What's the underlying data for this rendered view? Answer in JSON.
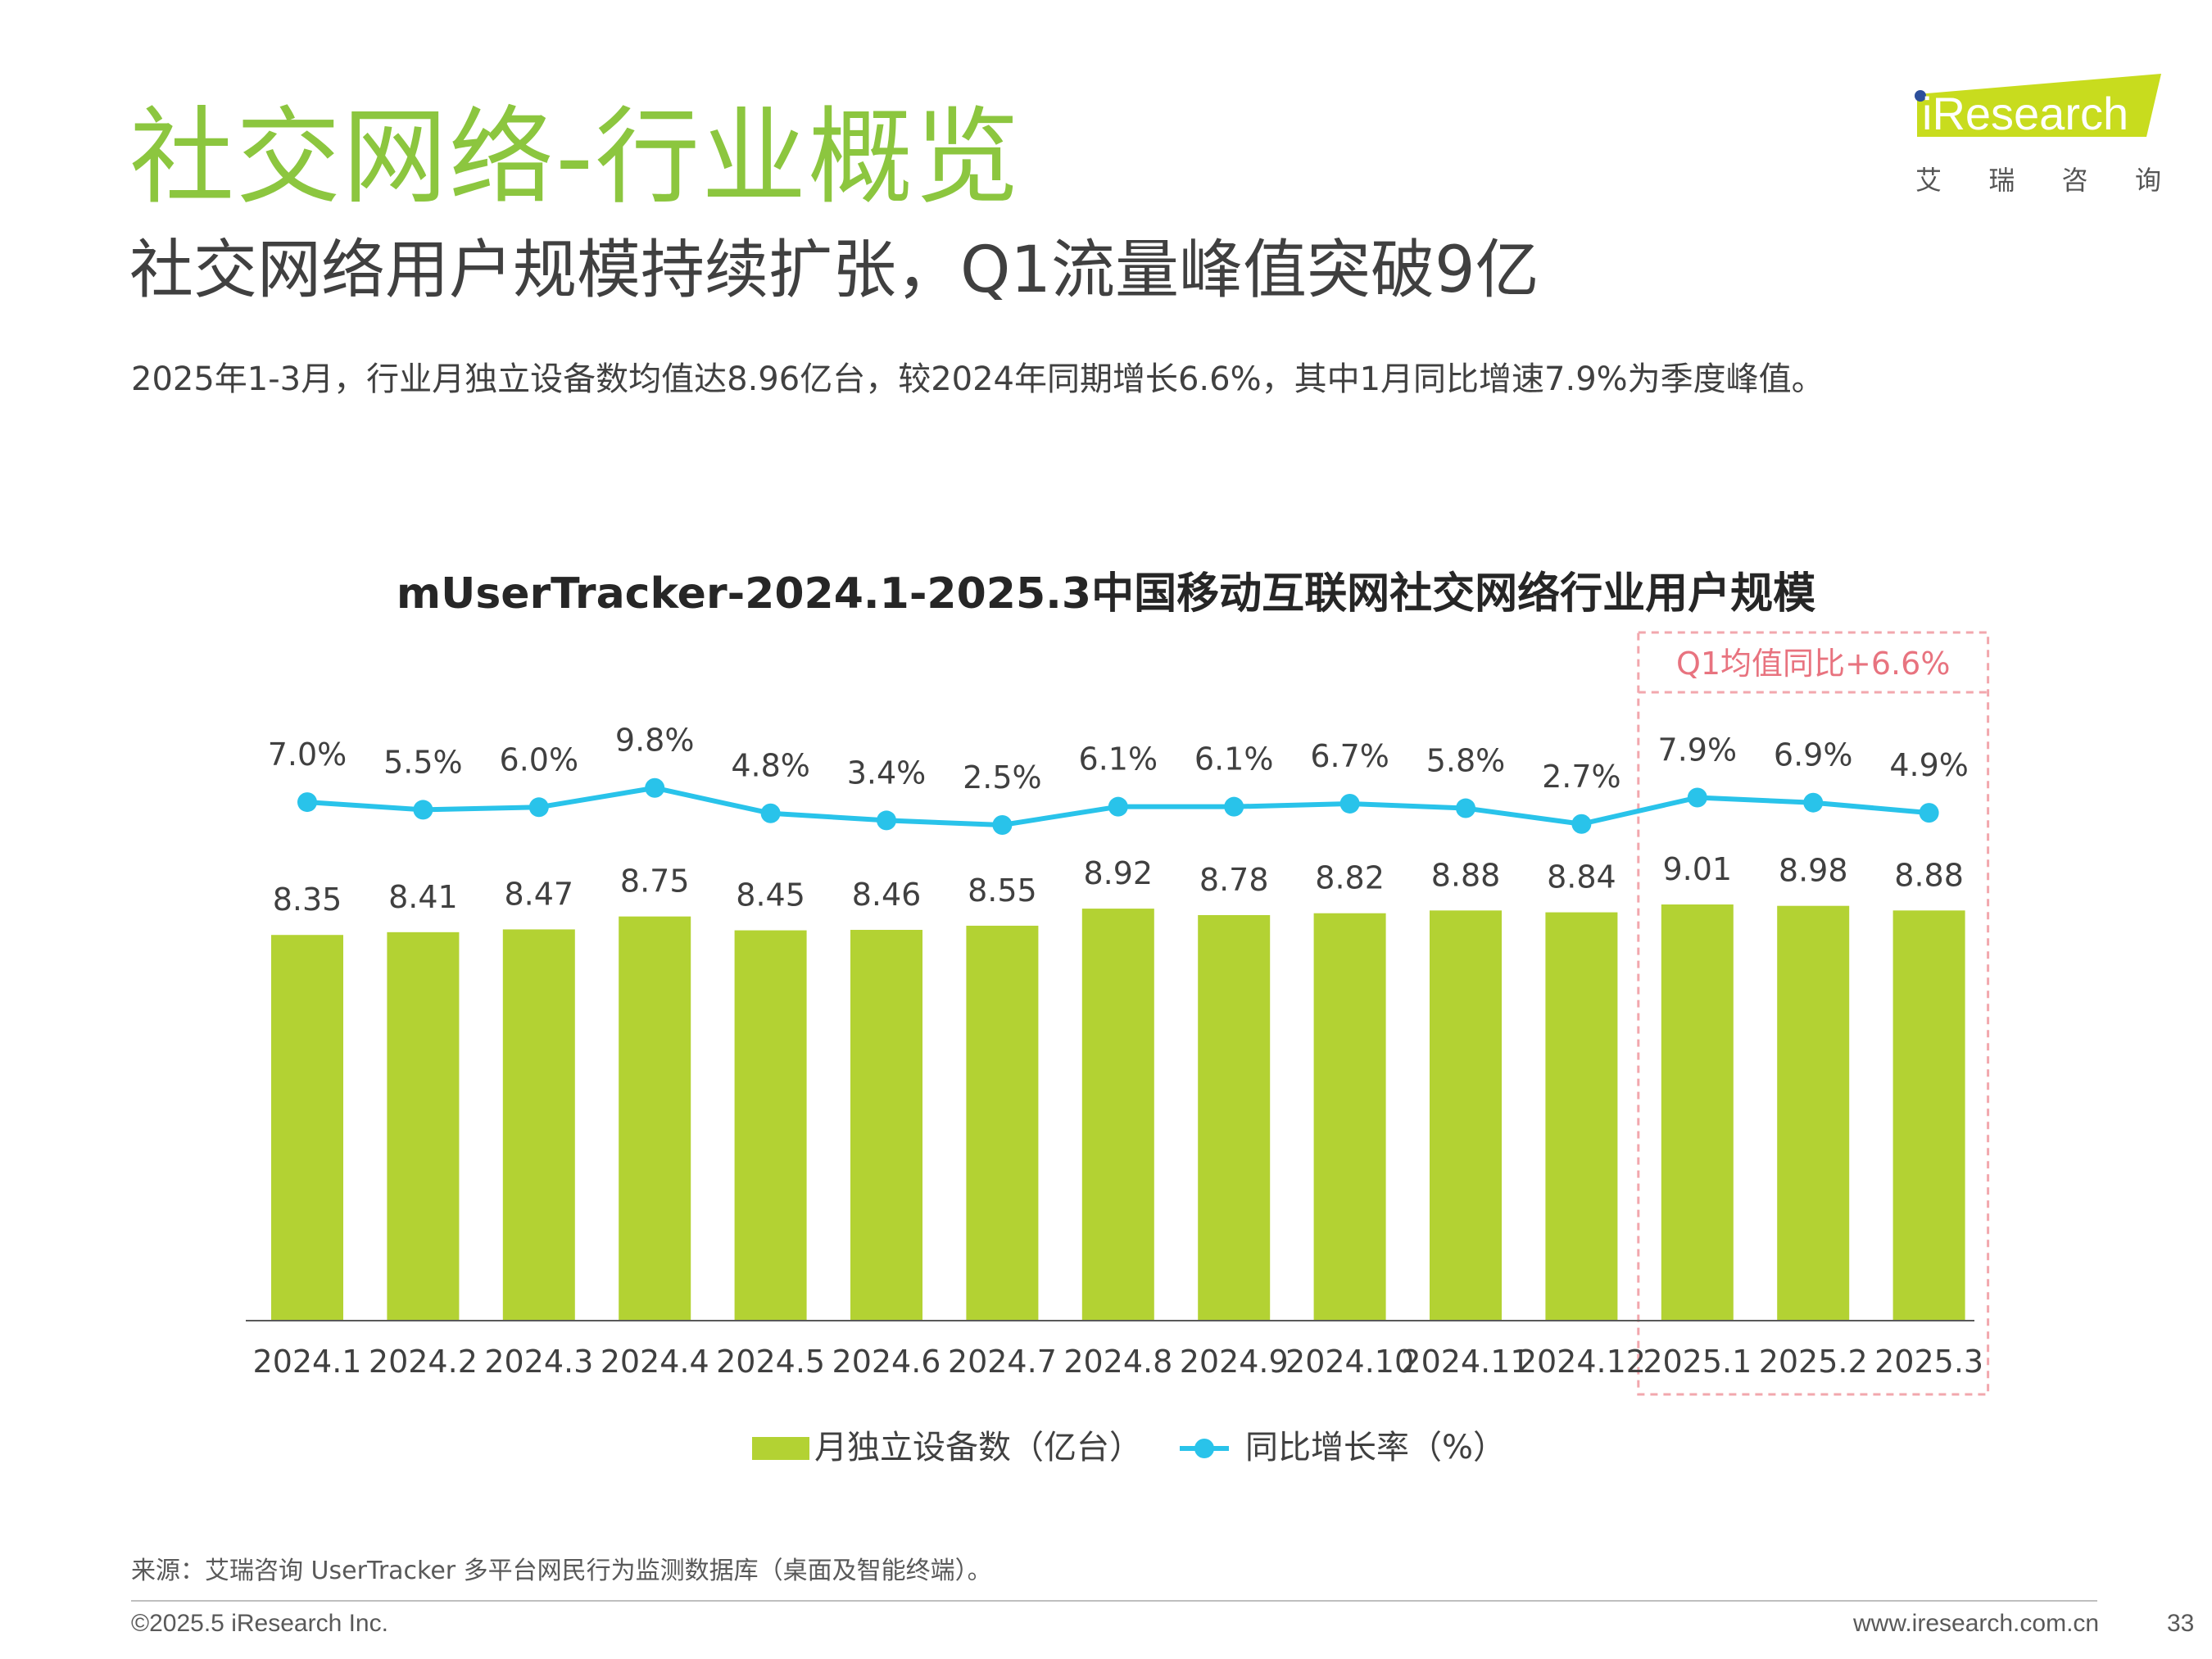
{
  "page": {
    "title": "社交网络-行业概览",
    "subtitle": "社交网络用户规模持续扩张，Q1流量峰值突破9亿",
    "summary": "2025年1-3月，行业月独立设备数均值达8.96亿台，较2024年同期增长6.6%，其中1月同比增速7.9%为季度峰值。",
    "logo_text": "iResearch",
    "logo_tagline": [
      "艾",
      "瑞",
      "咨",
      "询"
    ],
    "source": "来源：艾瑞咨询 UserTracker 多平台网民行为监测数据库（桌面及智能终端）。",
    "copyright": "©2025.5 iResearch Inc.",
    "website": "www.iresearch.com.cn",
    "page_number": "33"
  },
  "colors": {
    "title_green": "#8cc63f",
    "bar": "#b3d233",
    "line": "#29c3ea",
    "highlight_border": "#f2a7ad",
    "highlight_text": "#e8737f"
  },
  "chart_data": {
    "type": "bar",
    "title": "mUserTracker-2024.1-2025.3中国移动互联网社交网络行业用户规模",
    "categories": [
      "2024.1",
      "2024.2",
      "2024.3",
      "2024.4",
      "2024.5",
      "2024.6",
      "2024.7",
      "2024.8",
      "2024.9",
      "2024.10",
      "2024.11",
      "2024.12",
      "2025.1",
      "2025.2",
      "2025.3"
    ],
    "series": [
      {
        "name": "月独立设备数（亿台）",
        "type": "bar",
        "values": [
          8.35,
          8.41,
          8.47,
          8.75,
          8.45,
          8.46,
          8.55,
          8.92,
          8.78,
          8.82,
          8.88,
          8.84,
          9.01,
          8.98,
          8.88
        ],
        "labels": [
          "8.35",
          "8.41",
          "8.47",
          "8.75",
          "8.45",
          "8.46",
          "8.55",
          "8.92",
          "8.78",
          "8.82",
          "8.88",
          "8.84",
          "9.01",
          "8.98",
          "8.88"
        ]
      },
      {
        "name": "同比增长率（%）",
        "type": "line",
        "values": [
          7.0,
          5.5,
          6.0,
          9.8,
          4.8,
          3.4,
          2.5,
          6.1,
          6.1,
          6.7,
          5.8,
          2.7,
          7.9,
          6.9,
          4.9
        ],
        "labels": [
          "7.0%",
          "5.5%",
          "6.0%",
          "9.8%",
          "4.8%",
          "3.4%",
          "2.5%",
          "6.1%",
          "6.1%",
          "6.7%",
          "5.8%",
          "2.7%",
          "7.9%",
          "6.9%",
          "4.9%"
        ]
      }
    ],
    "highlight": {
      "label": "Q1均值同比+6.6%",
      "categories": [
        "2025.1",
        "2025.2",
        "2025.3"
      ]
    },
    "legend": "bottom-center",
    "grid": false
  }
}
